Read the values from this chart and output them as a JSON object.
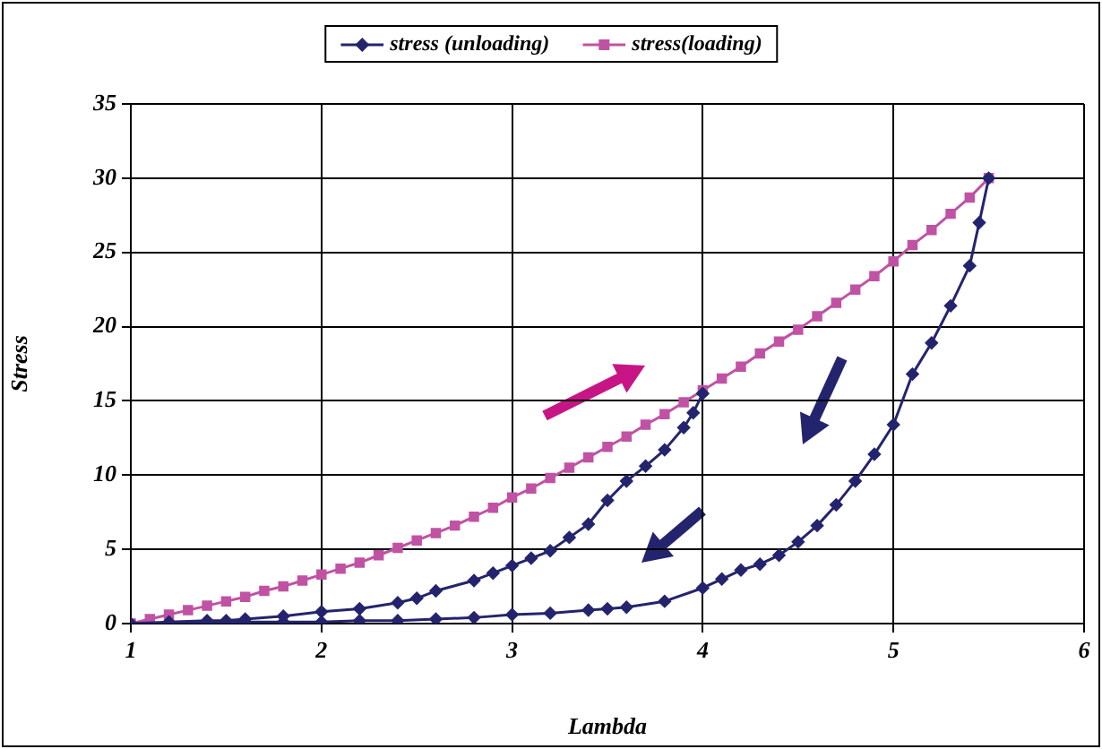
{
  "chart_data": {
    "type": "line",
    "xlabel": "Lambda",
    "ylabel": "Stress",
    "xlim": [
      1,
      6
    ],
    "xticks": [
      1,
      2,
      3,
      4,
      5,
      6
    ],
    "ylim": [
      0,
      35
    ],
    "yticks": [
      0,
      5,
      10,
      15,
      20,
      25,
      30,
      35
    ],
    "grid": true,
    "legend": "top",
    "line_style": "solid",
    "series": [
      {
        "name": "stress (unloading)",
        "color": "#24246e",
        "marker": "diamond",
        "x": [
          4.0,
          3.95,
          3.9,
          3.8,
          3.7,
          3.6,
          3.5,
          3.4,
          3.3,
          3.2,
          3.1,
          3.0,
          2.9,
          2.8,
          2.6,
          2.5,
          2.4,
          2.2,
          2.0,
          1.8,
          1.6,
          1.5,
          1.4,
          1.2,
          1.0,
          1.2,
          1.4,
          1.6,
          1.8,
          2.0,
          2.2,
          2.4,
          2.6,
          2.8,
          3.0,
          3.2,
          3.4,
          3.5,
          3.6,
          3.8,
          4.0,
          4.1,
          4.2,
          4.3,
          4.4,
          4.5,
          4.6,
          4.7,
          4.8,
          4.9,
          5.0,
          5.1,
          5.2,
          5.3,
          5.4,
          5.45,
          5.5
        ],
        "values": [
          15.5,
          14.2,
          13.2,
          11.7,
          10.6,
          9.6,
          8.3,
          6.7,
          5.8,
          4.9,
          4.4,
          3.9,
          3.4,
          2.9,
          2.2,
          1.7,
          1.4,
          1.0,
          0.8,
          0.5,
          0.3,
          0.2,
          0.2,
          0.1,
          0,
          0,
          0,
          0.1,
          0.1,
          0.1,
          0.2,
          0.2,
          0.3,
          0.4,
          0.6,
          0.7,
          0.9,
          1.0,
          1.1,
          1.5,
          2.4,
          3.0,
          3.6,
          4.0,
          4.6,
          5.5,
          6.6,
          8.0,
          9.6,
          11.4,
          13.4,
          16.8,
          18.9,
          21.4,
          24.1,
          27,
          30
        ]
      },
      {
        "name": "stress(loading)",
        "color": "#c052a4",
        "marker": "square",
        "x": [
          1.0,
          1.1,
          1.2,
          1.3,
          1.4,
          1.5,
          1.6,
          1.7,
          1.8,
          1.9,
          2.0,
          2.1,
          2.2,
          2.3,
          2.4,
          2.5,
          2.6,
          2.7,
          2.8,
          2.9,
          3.0,
          3.1,
          3.2,
          3.3,
          3.4,
          3.5,
          3.6,
          3.7,
          3.8,
          3.9,
          4.0,
          4.1,
          4.2,
          4.3,
          4.4,
          4.5,
          4.6,
          4.7,
          4.8,
          4.9,
          5.0,
          5.1,
          5.2,
          5.3,
          5.4,
          5.5
        ],
        "values": [
          0,
          0.3,
          0.6,
          0.9,
          1.2,
          1.5,
          1.8,
          2.2,
          2.5,
          2.9,
          3.3,
          3.7,
          4.1,
          4.6,
          5.1,
          5.6,
          6.1,
          6.6,
          7.2,
          7.8,
          8.5,
          9.1,
          9.8,
          10.5,
          11.2,
          11.9,
          12.6,
          13.4,
          14.1,
          14.9,
          15.7,
          16.5,
          17.3,
          18.2,
          19.0,
          19.8,
          20.7,
          21.6,
          22.5,
          23.4,
          24.4,
          25.5,
          26.5,
          27.6,
          28.7,
          30
        ]
      }
    ]
  }
}
